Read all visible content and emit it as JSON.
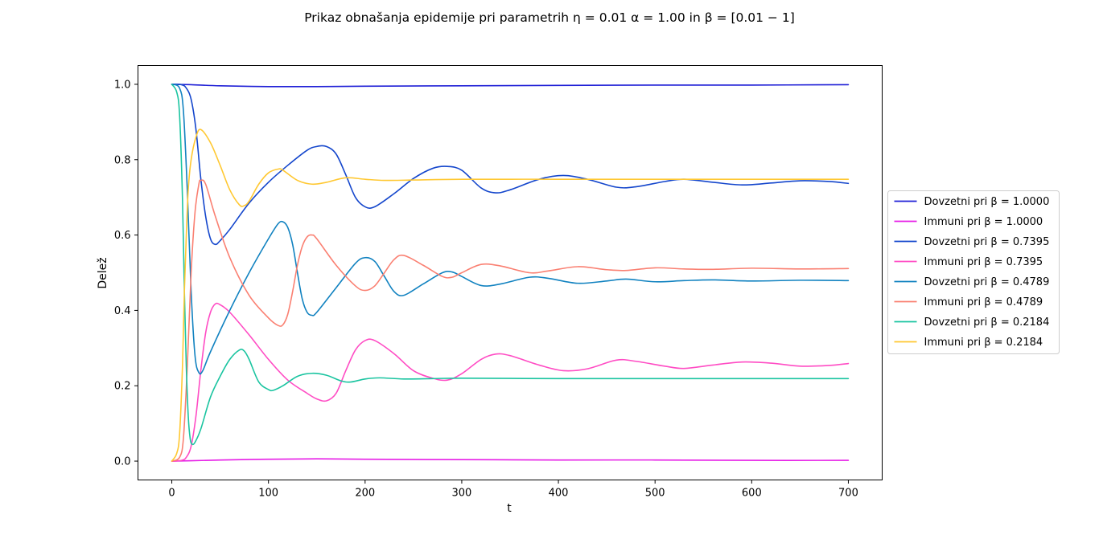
{
  "chart_data": {
    "type": "line",
    "title": "Prikaz obnašanja epidemije pri parametrih η = 0.01 α = 1.00 in β = [0.01 − 1]",
    "xlabel": "t",
    "ylabel": "Delež",
    "xlim": [
      -35,
      735
    ],
    "ylim": [
      -0.05,
      1.05
    ],
    "xticks": [
      0,
      100,
      200,
      300,
      400,
      500,
      600,
      700
    ],
    "yticks": [
      0.0,
      0.2,
      0.4,
      0.6,
      0.8,
      1.0
    ],
    "ytick_labels": [
      "0.0",
      "0.2",
      "0.4",
      "0.6",
      "0.8",
      "1.0"
    ],
    "grid": false,
    "legend_position": "center-right (outside plot)",
    "series": [
      {
        "name": "Dovzetni pri β = 1.0000",
        "color": "#1f1fd6",
        "points": [
          [
            0,
            1.0
          ],
          [
            20,
            0.999
          ],
          [
            50,
            0.996
          ],
          [
            100,
            0.994
          ],
          [
            150,
            0.994
          ],
          [
            200,
            0.995
          ],
          [
            300,
            0.996
          ],
          [
            400,
            0.997
          ],
          [
            500,
            0.998
          ],
          [
            600,
            0.998
          ],
          [
            700,
            0.999
          ]
        ]
      },
      {
        "name": "Immuni pri β = 1.0000",
        "color": "#e61ee6",
        "points": [
          [
            0,
            0.0
          ],
          [
            20,
            0.001
          ],
          [
            50,
            0.003
          ],
          [
            100,
            0.005
          ],
          [
            150,
            0.006
          ],
          [
            200,
            0.005
          ],
          [
            300,
            0.004
          ],
          [
            400,
            0.003
          ],
          [
            500,
            0.003
          ],
          [
            600,
            0.002
          ],
          [
            700,
            0.002
          ]
        ]
      },
      {
        "name": "Dovzetni pri β = 0.7395",
        "color": "#1446cc",
        "points": [
          [
            0,
            1.0
          ],
          [
            10,
            0.999
          ],
          [
            15,
            0.99
          ],
          [
            20,
            0.96
          ],
          [
            25,
            0.88
          ],
          [
            30,
            0.75
          ],
          [
            35,
            0.65
          ],
          [
            40,
            0.59
          ],
          [
            45,
            0.575
          ],
          [
            50,
            0.585
          ],
          [
            60,
            0.615
          ],
          [
            80,
            0.685
          ],
          [
            100,
            0.74
          ],
          [
            120,
            0.785
          ],
          [
            140,
            0.825
          ],
          [
            150,
            0.835
          ],
          [
            160,
            0.835
          ],
          [
            170,
            0.815
          ],
          [
            180,
            0.76
          ],
          [
            190,
            0.7
          ],
          [
            200,
            0.675
          ],
          [
            210,
            0.675
          ],
          [
            230,
            0.71
          ],
          [
            250,
            0.75
          ],
          [
            270,
            0.777
          ],
          [
            285,
            0.782
          ],
          [
            300,
            0.772
          ],
          [
            320,
            0.725
          ],
          [
            335,
            0.712
          ],
          [
            350,
            0.72
          ],
          [
            380,
            0.748
          ],
          [
            405,
            0.758
          ],
          [
            430,
            0.748
          ],
          [
            460,
            0.727
          ],
          [
            480,
            0.728
          ],
          [
            510,
            0.742
          ],
          [
            530,
            0.748
          ],
          [
            560,
            0.74
          ],
          [
            590,
            0.733
          ],
          [
            620,
            0.738
          ],
          [
            650,
            0.744
          ],
          [
            680,
            0.742
          ],
          [
            700,
            0.737
          ]
        ]
      },
      {
        "name": "Immuni pri β = 0.7395",
        "color": "#ff4cc4",
        "points": [
          [
            0,
            0.0
          ],
          [
            10,
            0.002
          ],
          [
            15,
            0.01
          ],
          [
            20,
            0.04
          ],
          [
            25,
            0.12
          ],
          [
            30,
            0.24
          ],
          [
            35,
            0.34
          ],
          [
            40,
            0.395
          ],
          [
            45,
            0.417
          ],
          [
            50,
            0.415
          ],
          [
            60,
            0.395
          ],
          [
            80,
            0.335
          ],
          [
            100,
            0.27
          ],
          [
            120,
            0.215
          ],
          [
            140,
            0.18
          ],
          [
            150,
            0.165
          ],
          [
            160,
            0.16
          ],
          [
            170,
            0.18
          ],
          [
            180,
            0.24
          ],
          [
            190,
            0.295
          ],
          [
            200,
            0.32
          ],
          [
            210,
            0.32
          ],
          [
            230,
            0.285
          ],
          [
            250,
            0.24
          ],
          [
            270,
            0.22
          ],
          [
            285,
            0.215
          ],
          [
            300,
            0.232
          ],
          [
            320,
            0.27
          ],
          [
            335,
            0.284
          ],
          [
            350,
            0.28
          ],
          [
            380,
            0.255
          ],
          [
            405,
            0.24
          ],
          [
            430,
            0.245
          ],
          [
            460,
            0.268
          ],
          [
            480,
            0.265
          ],
          [
            510,
            0.252
          ],
          [
            530,
            0.246
          ],
          [
            560,
            0.255
          ],
          [
            590,
            0.263
          ],
          [
            620,
            0.26
          ],
          [
            650,
            0.252
          ],
          [
            680,
            0.254
          ],
          [
            700,
            0.259
          ]
        ]
      },
      {
        "name": "Dovzetni pri β = 0.4789",
        "color": "#1182c0",
        "points": [
          [
            0,
            1.0
          ],
          [
            8,
            0.99
          ],
          [
            12,
            0.93
          ],
          [
            16,
            0.72
          ],
          [
            20,
            0.45
          ],
          [
            24,
            0.28
          ],
          [
            28,
            0.235
          ],
          [
            32,
            0.24
          ],
          [
            40,
            0.29
          ],
          [
            60,
            0.4
          ],
          [
            80,
            0.5
          ],
          [
            100,
            0.59
          ],
          [
            110,
            0.63
          ],
          [
            115,
            0.635
          ],
          [
            120,
            0.62
          ],
          [
            125,
            0.575
          ],
          [
            130,
            0.5
          ],
          [
            135,
            0.43
          ],
          [
            140,
            0.395
          ],
          [
            145,
            0.387
          ],
          [
            150,
            0.395
          ],
          [
            170,
            0.46
          ],
          [
            190,
            0.525
          ],
          [
            200,
            0.54
          ],
          [
            210,
            0.53
          ],
          [
            220,
            0.49
          ],
          [
            230,
            0.45
          ],
          [
            240,
            0.44
          ],
          [
            260,
            0.47
          ],
          [
            280,
            0.5
          ],
          [
            290,
            0.502
          ],
          [
            300,
            0.49
          ],
          [
            320,
            0.466
          ],
          [
            340,
            0.47
          ],
          [
            370,
            0.488
          ],
          [
            390,
            0.485
          ],
          [
            420,
            0.472
          ],
          [
            450,
            0.478
          ],
          [
            470,
            0.483
          ],
          [
            500,
            0.476
          ],
          [
            530,
            0.479
          ],
          [
            560,
            0.481
          ],
          [
            600,
            0.478
          ],
          [
            650,
            0.48
          ],
          [
            700,
            0.479
          ]
        ]
      },
      {
        "name": "Immuni pri β = 0.4789",
        "color": "#fa8072",
        "points": [
          [
            0,
            0.0
          ],
          [
            8,
            0.01
          ],
          [
            12,
            0.06
          ],
          [
            16,
            0.25
          ],
          [
            20,
            0.5
          ],
          [
            24,
            0.66
          ],
          [
            28,
            0.735
          ],
          [
            30,
            0.745
          ],
          [
            35,
            0.735
          ],
          [
            45,
            0.65
          ],
          [
            60,
            0.54
          ],
          [
            80,
            0.44
          ],
          [
            100,
            0.38
          ],
          [
            110,
            0.36
          ],
          [
            115,
            0.362
          ],
          [
            120,
            0.39
          ],
          [
            125,
            0.45
          ],
          [
            130,
            0.52
          ],
          [
            135,
            0.57
          ],
          [
            140,
            0.595
          ],
          [
            145,
            0.6
          ],
          [
            150,
            0.59
          ],
          [
            170,
            0.52
          ],
          [
            190,
            0.465
          ],
          [
            200,
            0.453
          ],
          [
            210,
            0.465
          ],
          [
            220,
            0.5
          ],
          [
            230,
            0.535
          ],
          [
            240,
            0.546
          ],
          [
            260,
            0.52
          ],
          [
            280,
            0.49
          ],
          [
            290,
            0.488
          ],
          [
            300,
            0.5
          ],
          [
            320,
            0.522
          ],
          [
            340,
            0.518
          ],
          [
            370,
            0.5
          ],
          [
            390,
            0.505
          ],
          [
            420,
            0.516
          ],
          [
            450,
            0.508
          ],
          [
            470,
            0.506
          ],
          [
            500,
            0.513
          ],
          [
            530,
            0.51
          ],
          [
            560,
            0.509
          ],
          [
            600,
            0.512
          ],
          [
            650,
            0.51
          ],
          [
            700,
            0.511
          ]
        ]
      },
      {
        "name": "Dovzetni pri β = 0.2184",
        "color": "#1ac4a0",
        "points": [
          [
            0,
            1.0
          ],
          [
            5,
            0.98
          ],
          [
            8,
            0.92
          ],
          [
            11,
            0.7
          ],
          [
            13,
            0.45
          ],
          [
            15,
            0.25
          ],
          [
            17,
            0.12
          ],
          [
            19,
            0.06
          ],
          [
            21,
            0.045
          ],
          [
            24,
            0.05
          ],
          [
            30,
            0.085
          ],
          [
            40,
            0.17
          ],
          [
            50,
            0.225
          ],
          [
            60,
            0.27
          ],
          [
            70,
            0.295
          ],
          [
            75,
            0.292
          ],
          [
            80,
            0.27
          ],
          [
            90,
            0.21
          ],
          [
            100,
            0.19
          ],
          [
            105,
            0.188
          ],
          [
            115,
            0.2
          ],
          [
            130,
            0.225
          ],
          [
            145,
            0.233
          ],
          [
            160,
            0.228
          ],
          [
            175,
            0.213
          ],
          [
            185,
            0.21
          ],
          [
            200,
            0.218
          ],
          [
            215,
            0.221
          ],
          [
            240,
            0.218
          ],
          [
            270,
            0.219
          ],
          [
            300,
            0.22
          ],
          [
            400,
            0.219
          ],
          [
            500,
            0.219
          ],
          [
            600,
            0.219
          ],
          [
            700,
            0.219
          ]
        ]
      },
      {
        "name": "Immuni pri β = 0.2184",
        "color": "#ffc832",
        "points": [
          [
            0,
            0.0
          ],
          [
            5,
            0.02
          ],
          [
            8,
            0.07
          ],
          [
            11,
            0.25
          ],
          [
            13,
            0.45
          ],
          [
            15,
            0.6
          ],
          [
            17,
            0.72
          ],
          [
            20,
            0.8
          ],
          [
            25,
            0.86
          ],
          [
            30,
            0.88
          ],
          [
            40,
            0.845
          ],
          [
            50,
            0.785
          ],
          [
            60,
            0.72
          ],
          [
            70,
            0.68
          ],
          [
            75,
            0.678
          ],
          [
            80,
            0.69
          ],
          [
            90,
            0.735
          ],
          [
            100,
            0.765
          ],
          [
            110,
            0.775
          ],
          [
            115,
            0.772
          ],
          [
            130,
            0.745
          ],
          [
            145,
            0.735
          ],
          [
            160,
            0.74
          ],
          [
            180,
            0.752
          ],
          [
            200,
            0.748
          ],
          [
            220,
            0.745
          ],
          [
            250,
            0.746
          ],
          [
            300,
            0.748
          ],
          [
            400,
            0.748
          ],
          [
            500,
            0.748
          ],
          [
            600,
            0.748
          ],
          [
            700,
            0.748
          ]
        ]
      }
    ]
  }
}
